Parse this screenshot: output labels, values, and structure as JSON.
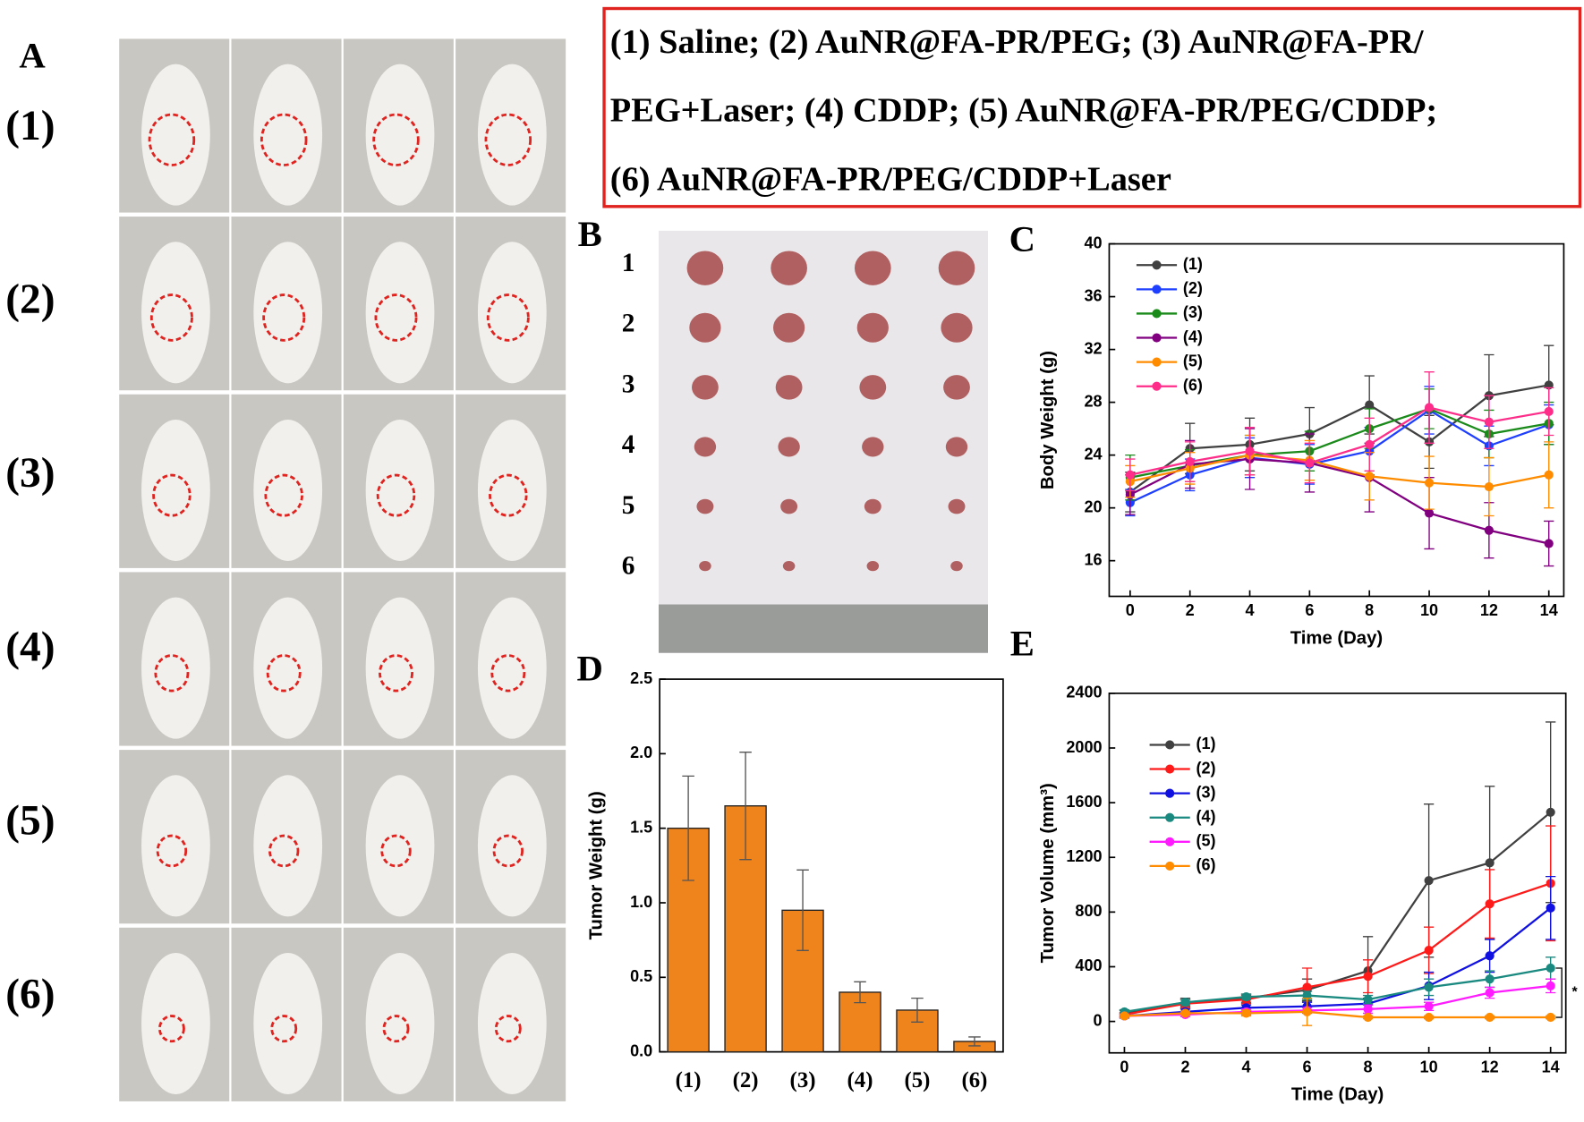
{
  "panel_labels": [
    "A",
    "B",
    "C",
    "D",
    "E"
  ],
  "caption": [
    "(1) Saline; (2) AuNR@FA-PR/PEG; (3) AuNR@FA-PR/",
    "PEG+Laser; (4) CDDP; (5) AuNR@FA-PR/PEG/CDDP;",
    "(6) AuNR@FA-PR/PEG/CDDP+Laser"
  ],
  "row_labels": [
    "(1)",
    "(2)",
    "(3)",
    "(4)",
    "(5)",
    "(6)"
  ],
  "tumor_labels": [
    "1",
    "2",
    "3",
    "4",
    "5",
    "6"
  ],
  "chart_data": [
    {
      "type": "line",
      "xlabel": "Time (Day)",
      "ylabel": "Body Weight (g)",
      "x": [
        0,
        2,
        4,
        6,
        8,
        10,
        12,
        14
      ],
      "xlim": [
        -0.7,
        14.5
      ],
      "xticks": [
        0,
        2,
        4,
        6,
        8,
        10,
        12,
        14
      ],
      "ylim": [
        13.3,
        40
      ],
      "yticks": [
        16,
        20,
        24,
        28,
        32,
        36,
        40
      ],
      "legend": "upper left",
      "series": [
        {
          "name": "(1)",
          "color": "#404040",
          "values": [
            21.2,
            24.5,
            24.8,
            25.6,
            27.8,
            25.0,
            28.5,
            29.3
          ],
          "errors": [
            1.5,
            1.9,
            2.0,
            2.0,
            2.2,
            2.0,
            3.1,
            3.0
          ]
        },
        {
          "name": "(2)",
          "color": "#1f3fff",
          "values": [
            20.4,
            22.5,
            23.8,
            23.3,
            24.3,
            27.4,
            24.7,
            26.3
          ],
          "errors": [
            1.0,
            1.2,
            1.5,
            1.5,
            1.8,
            1.8,
            1.5,
            1.5
          ]
        },
        {
          "name": "(3)",
          "color": "#1a8a1a",
          "values": [
            22.3,
            23.2,
            24.0,
            24.3,
            26.0,
            27.5,
            25.6,
            26.4
          ],
          "errors": [
            1.7,
            1.2,
            1.5,
            1.5,
            1.5,
            1.5,
            1.8,
            1.6
          ]
        },
        {
          "name": "(4)",
          "color": "#800080",
          "values": [
            21.0,
            23.3,
            23.7,
            23.4,
            22.3,
            19.6,
            18.3,
            17.3
          ],
          "errors": [
            1.5,
            1.8,
            2.3,
            2.2,
            2.6,
            2.7,
            2.1,
            1.7
          ]
        },
        {
          "name": "(5)",
          "color": "#ff8c00",
          "values": [
            22.0,
            23.0,
            24.0,
            23.6,
            22.4,
            21.9,
            21.6,
            22.5
          ],
          "errors": [
            1.2,
            1.2,
            1.5,
            1.5,
            1.8,
            2.0,
            2.2,
            2.5
          ]
        },
        {
          "name": "(6)",
          "color": "#ff2d8a",
          "values": [
            22.5,
            23.5,
            24.3,
            23.4,
            24.8,
            27.6,
            26.5,
            27.3
          ],
          "errors": [
            1.2,
            1.5,
            1.8,
            1.5,
            2.0,
            2.7,
            2.0,
            1.8
          ]
        }
      ]
    },
    {
      "type": "bar",
      "ylabel": "Tumor Weight (g)",
      "categories": [
        "(1)",
        "(2)",
        "(3)",
        "(4)",
        "(5)",
        "(6)"
      ],
      "values": [
        1.5,
        1.65,
        0.95,
        0.4,
        0.28,
        0.07
      ],
      "errors": [
        0.35,
        0.36,
        0.27,
        0.07,
        0.08,
        0.03
      ],
      "color": "#f0841c",
      "ylim": [
        0,
        2.5
      ],
      "yticks": [
        {
          "value": 0,
          "label": "0.0"
        },
        0.5,
        {
          "value": 1,
          "label": "1.0"
        },
        1.5,
        {
          "value": 2,
          "label": "2.0"
        },
        2.5
      ]
    },
    {
      "type": "line",
      "xlabel": "Time (Day)",
      "ylabel": "Tumor Volume (mm³)",
      "x": [
        0,
        2,
        4,
        6,
        8,
        10,
        12,
        14
      ],
      "xlim": [
        -0.5,
        14.5
      ],
      "xticks": [
        0,
        2,
        4,
        6,
        8,
        10,
        12,
        14
      ],
      "ylim": [
        -230,
        2400
      ],
      "yticks": [
        0,
        400,
        800,
        1200,
        1600,
        2000,
        2400
      ],
      "legend": "upper left",
      "annotation": "*",
      "series": [
        {
          "name": "(1)",
          "color": "#404040",
          "values": [
            60,
            140,
            170,
            230,
            370,
            1030,
            1160,
            1530
          ],
          "errors": [
            20,
            30,
            30,
            80,
            250,
            560,
            560,
            660
          ]
        },
        {
          "name": "(2)",
          "color": "#ff1a1a",
          "values": [
            50,
            130,
            160,
            250,
            330,
            520,
            860,
            1010
          ],
          "errors": [
            15,
            30,
            30,
            140,
            120,
            170,
            250,
            420
          ]
        },
        {
          "name": "(3)",
          "color": "#1010e0",
          "values": [
            40,
            70,
            100,
            110,
            130,
            260,
            480,
            830
          ],
          "errors": [
            15,
            20,
            20,
            30,
            40,
            100,
            120,
            230
          ]
        },
        {
          "name": "(4)",
          "color": "#1a8a80",
          "values": [
            70,
            140,
            180,
            190,
            160,
            250,
            310,
            390
          ],
          "errors": [
            15,
            20,
            20,
            30,
            30,
            60,
            60,
            80
          ]
        },
        {
          "name": "(5)",
          "color": "#ff1aff",
          "values": [
            40,
            50,
            70,
            80,
            90,
            110,
            210,
            260
          ],
          "errors": [
            10,
            15,
            20,
            20,
            30,
            30,
            40,
            50
          ]
        },
        {
          "name": "(6)",
          "color": "#ff8c00",
          "values": [
            40,
            60,
            60,
            70,
            30,
            30,
            30,
            30
          ],
          "errors": [
            10,
            15,
            20,
            100,
            10,
            10,
            10,
            10
          ]
        }
      ]
    }
  ]
}
